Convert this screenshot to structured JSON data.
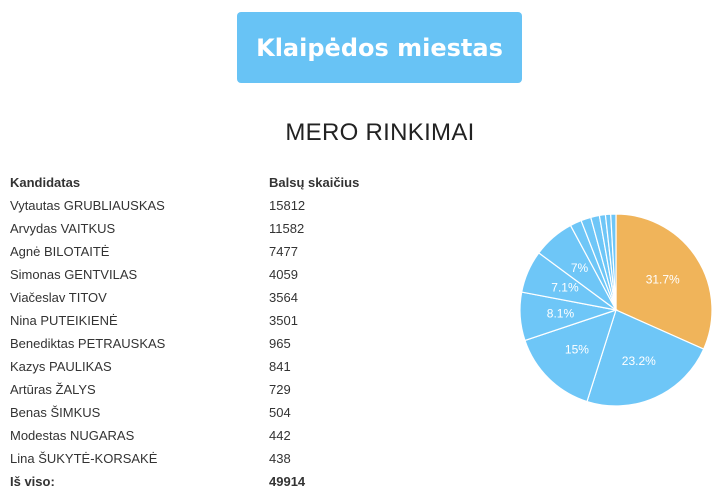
{
  "header": {
    "city_button_label": "Klaipėdos miestas"
  },
  "section": {
    "title": "MERO RINKIMAI"
  },
  "table": {
    "headers": {
      "candidate": "Kandidatas",
      "votes": "Balsų skaičius"
    },
    "rows": [
      {
        "name": "Vytautas GRUBLIAUSKAS",
        "votes": "15812"
      },
      {
        "name": "Arvydas VAITKUS",
        "votes": "11582"
      },
      {
        "name": "Agnė BILOTAITĖ",
        "votes": "7477"
      },
      {
        "name": "Simonas GENTVILAS",
        "votes": "4059"
      },
      {
        "name": "Viačeslav TITOV",
        "votes": "3564"
      },
      {
        "name": "Nina PUTEIKIENĖ",
        "votes": "3501"
      },
      {
        "name": "Benediktas PETRAUSKAS",
        "votes": "965"
      },
      {
        "name": "Kazys PAULIKAS",
        "votes": "841"
      },
      {
        "name": "Artūras ŽALYS",
        "votes": "729"
      },
      {
        "name": "Benas ŠIMKUS",
        "votes": "504"
      },
      {
        "name": "Modestas NUGARAS",
        "votes": "442"
      },
      {
        "name": "Lina ŠUKYTĖ-KORSAKĖ",
        "votes": "438"
      }
    ],
    "total": {
      "label": "Iš viso:",
      "votes": "49914"
    }
  },
  "colors": {
    "button": "#68c3f5",
    "highlight_slice": "#f0b45a",
    "slice": "#6ec6f7",
    "slice_border": "#ffffff"
  },
  "chart_data": {
    "type": "pie",
    "values": [
      15812,
      11582,
      7477,
      4059,
      3564,
      3501,
      965,
      841,
      729,
      504,
      442,
      438
    ],
    "slice_labels": [
      "31.7%",
      "23.2%",
      "15%",
      "8.1%",
      "7.1%",
      "7%",
      "",
      "",
      "",
      "",
      "",
      ""
    ],
    "highlighted_index": 0
  }
}
